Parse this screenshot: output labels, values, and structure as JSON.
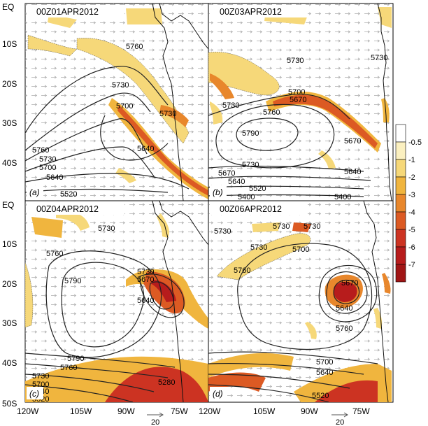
{
  "figure": {
    "y_axis_labels": [
      "EQ",
      "10S",
      "20S",
      "30S",
      "40S",
      "EQ",
      "10S",
      "20S",
      "30S",
      "40S",
      "50S"
    ],
    "x_axis_labels_left": [
      "120W",
      "105W",
      "90W",
      "75W"
    ],
    "x_axis_labels_right": [
      "120W",
      "105W",
      "90W",
      "75W"
    ],
    "reference_vector_label": "20",
    "colorbar": {
      "labels": [
        "-0.5",
        "-1",
        "-2",
        "-3",
        "-4",
        "-5",
        "-6",
        "-7"
      ],
      "colors": [
        "#ffffff",
        "#fbf0c0",
        "#f6d879",
        "#f0b53e",
        "#e8872c",
        "#dc5a23",
        "#cc3322",
        "#b71c1c",
        "#a01515"
      ]
    },
    "colors": {
      "shade_light": "#f6d879",
      "shade_mid": "#f0b53e",
      "shade_orange": "#e8872c",
      "shade_red": "#cc3322",
      "contour": "#222222",
      "coast": "#111111"
    }
  },
  "panels": [
    {
      "title": "00Z01APR2012",
      "letter": "(a)",
      "contour_labels": [
        "5760",
        "5730",
        "5700",
        "5730",
        "5640",
        "5760",
        "5730",
        "5700",
        "5640",
        "5520"
      ]
    },
    {
      "title": "00Z03APR2012",
      "letter": "(b)",
      "contour_labels": [
        "5730",
        "5730",
        "5700",
        "5670",
        "5760",
        "5790",
        "5670",
        "5730",
        "5670",
        "5640",
        "5640",
        "5520",
        "5400",
        "5400",
        "5730"
      ]
    },
    {
      "title": "00Z04APR2012",
      "letter": "(c)",
      "contour_labels": [
        "5730",
        "5760",
        "5790",
        "5730",
        "5670",
        "5640",
        "5790",
        "5760",
        "5730",
        "5700",
        "5640",
        "5520",
        "5280"
      ]
    },
    {
      "title": "00Z06APR2012",
      "letter": "(d)",
      "contour_labels": [
        "5730",
        "5730",
        "5760",
        "5730",
        "5700",
        "5640",
        "5760",
        "5670",
        "5700",
        "5640",
        "5520",
        "5730"
      ]
    }
  ]
}
